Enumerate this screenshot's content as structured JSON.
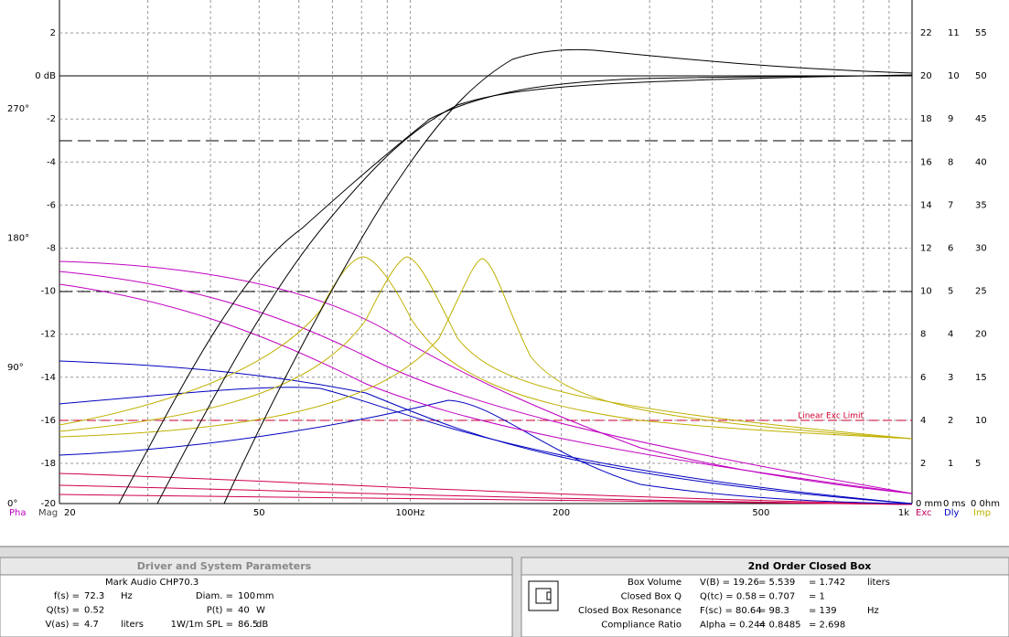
{
  "plot": {
    "magnitude_ticks": [
      "2",
      "0 dB",
      "-2",
      "-4",
      "-6",
      "-8",
      "-10",
      "-12",
      "-14",
      "-16",
      "-18",
      "-20"
    ],
    "phase_ticks": [
      "270°",
      "180°",
      "90°",
      "0°"
    ],
    "excursion_ticks": [
      "22",
      "20",
      "18",
      "16",
      "14",
      "12",
      "10",
      "8",
      "6",
      "4",
      "2",
      "0 mm"
    ],
    "delay_ticks": [
      "11",
      "10",
      "9",
      "8",
      "7",
      "6",
      "5",
      "4",
      "3",
      "2",
      "1",
      "0 ms"
    ],
    "impedance_ticks": [
      "55",
      "50",
      "45",
      "40",
      "35",
      "30",
      "25",
      "20",
      "15",
      "10",
      "5",
      "0 0hm"
    ],
    "frequency_ticks": [
      "20",
      "50",
      "100Hz",
      "200",
      "500",
      "1k"
    ],
    "axis_names": {
      "phase": "Pha",
      "magnitude": "Mag",
      "excursion": "Exc",
      "delay": "Dly",
      "impedance": "Imp"
    },
    "annotation": "Linear Exc Limit"
  },
  "driver_panel": {
    "title": "Driver and System Parameters",
    "driver": "Mark Audio CHP70.3",
    "left": [
      {
        "label": "f(s) =",
        "value": "72.3",
        "unit": "Hz"
      },
      {
        "label": "Q(ts) =",
        "value": "0.52"
      },
      {
        "label": "V(as) =",
        "value": "4.7",
        "unit": "liters"
      }
    ],
    "right": [
      {
        "label": "Diam. =",
        "value": "100",
        "unit": "mm"
      },
      {
        "label": "P(t) =",
        "value": "40",
        "unit": "W"
      },
      {
        "label": "1W/1m SPL =",
        "value": "86.5",
        "unit": "dB"
      }
    ]
  },
  "box_panel": {
    "title": "2nd Order Closed Box",
    "rows": [
      {
        "label": "Box Volume",
        "values": [
          "V(B) = 19.26",
          "= 5.539",
          "= 1.742"
        ],
        "unit": "liters"
      },
      {
        "label": "Closed Box Q",
        "values": [
          "Q(tc) = 0.58",
          "= 0.707",
          "= 1"
        ]
      },
      {
        "label": "Closed Box Resonance",
        "values": [
          "F(sc) = 80.64",
          "= 98.3",
          "= 139"
        ],
        "unit": "Hz"
      },
      {
        "label": "Compliance Ratio",
        "values": [
          "Alpha = 0.244",
          "= 0.8485",
          "= 2.698"
        ]
      }
    ]
  }
}
